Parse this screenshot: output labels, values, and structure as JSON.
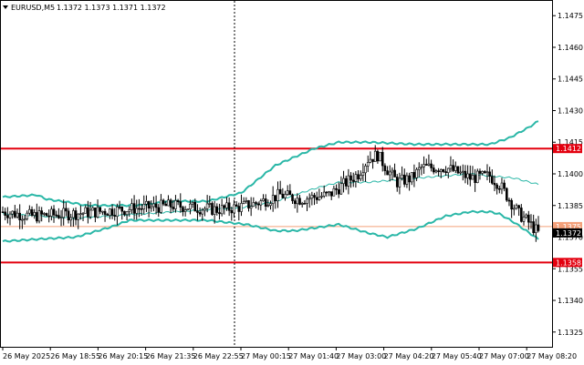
{
  "window": {
    "symbol_timeframe": "EURUSD,M5",
    "ohlc": "1.1372 1.1373 1.1371 1.1372",
    "dropdown_icon": "triangle-down-icon"
  },
  "chart_data": {
    "type": "candlestick",
    "title": "EURUSD,M5",
    "ylim": [
      1.1318,
      1.1482
    ],
    "y_ticks": [
      "1.1475",
      "1.1460",
      "1.1445",
      "1.1430",
      "1.1415",
      "1.1400",
      "1.1385",
      "1.1370",
      "1.1355",
      "1.1340",
      "1.1325"
    ],
    "x_ticks": [
      "26 May 2025",
      "26 May 18:55",
      "26 May 20:15",
      "26 May 21:35",
      "26 May 22:55",
      "27 May 00:15",
      "27 May 01:40",
      "27 May 03:00",
      "27 May 04:20",
      "27 May 05:40",
      "27 May 07:00",
      "27 May 08:20"
    ],
    "horizontal_levels": [
      {
        "value": 1.1412,
        "label": "1.1412",
        "color": "#e3000f"
      },
      {
        "value": 1.1358,
        "label": "1.1358",
        "color": "#e3000f"
      },
      {
        "value": 1.1375,
        "label": "1.1375",
        "color": "#f4a07a"
      }
    ],
    "current_price": {
      "value": 1.1372,
      "label": "1.1372",
      "color": "#000000"
    },
    "vertical_marker_time": "26 May 22:55",
    "bollinger": {
      "color": "#2ab7a7",
      "upper_anchors": [
        [
          0,
          1.1389
        ],
        [
          14,
          1.139
        ],
        [
          18,
          1.1388
        ],
        [
          30,
          1.1386
        ],
        [
          34,
          1.1385
        ],
        [
          55,
          1.1385
        ],
        [
          70,
          1.1387
        ],
        [
          84,
          1.1387
        ],
        [
          98,
          1.1391
        ],
        [
          112,
          1.1404
        ],
        [
          128,
          1.1412
        ],
        [
          138,
          1.1415
        ],
        [
          150,
          1.1415
        ],
        [
          170,
          1.1414
        ],
        [
          192,
          1.1414
        ],
        [
          200,
          1.1414
        ],
        [
          208,
          1.1417
        ],
        [
          216,
          1.1422
        ],
        [
          220,
          1.1425
        ]
      ],
      "middle_anchors": [
        [
          0,
          1.1381
        ],
        [
          30,
          1.1379
        ],
        [
          70,
          1.1382
        ],
        [
          98,
          1.1384
        ],
        [
          112,
          1.1387
        ],
        [
          128,
          1.1393
        ],
        [
          138,
          1.1396
        ],
        [
          150,
          1.1396
        ],
        [
          170,
          1.1398
        ],
        [
          192,
          1.14
        ],
        [
          200,
          1.1399
        ],
        [
          210,
          1.1398
        ],
        [
          220,
          1.1395
        ]
      ],
      "lower_anchors": [
        [
          0,
          1.1368
        ],
        [
          14,
          1.1369
        ],
        [
          30,
          1.137
        ],
        [
          45,
          1.1375
        ],
        [
          52,
          1.1378
        ],
        [
          70,
          1.1378
        ],
        [
          84,
          1.1378
        ],
        [
          100,
          1.1376
        ],
        [
          112,
          1.1373
        ],
        [
          120,
          1.1373
        ],
        [
          138,
          1.1376
        ],
        [
          150,
          1.1372
        ],
        [
          158,
          1.137
        ],
        [
          170,
          1.1374
        ],
        [
          182,
          1.138
        ],
        [
          192,
          1.1382
        ],
        [
          200,
          1.1382
        ],
        [
          204,
          1.1381
        ],
        [
          210,
          1.1377
        ],
        [
          215,
          1.1373
        ],
        [
          220,
          1.1369
        ]
      ]
    },
    "price_anchors": [
      [
        0,
        1.1382
      ],
      [
        12,
        1.138
      ],
      [
        28,
        1.1381
      ],
      [
        48,
        1.1383
      ],
      [
        70,
        1.1385
      ],
      [
        88,
        1.1383
      ],
      [
        96,
        1.1384
      ],
      [
        104,
        1.1386
      ],
      [
        114,
        1.139
      ],
      [
        122,
        1.1388
      ],
      [
        134,
        1.139
      ],
      [
        140,
        1.1395
      ],
      [
        146,
        1.14
      ],
      [
        150,
        1.1407
      ],
      [
        154,
        1.1409
      ],
      [
        158,
        1.1402
      ],
      [
        162,
        1.1396
      ],
      [
        168,
        1.1398
      ],
      [
        172,
        1.1403
      ],
      [
        182,
        1.1403
      ],
      [
        192,
        1.1398
      ],
      [
        200,
        1.1399
      ],
      [
        204,
        1.1395
      ],
      [
        208,
        1.1388
      ],
      [
        212,
        1.1381
      ],
      [
        216,
        1.1377
      ],
      [
        220,
        1.1372
      ]
    ],
    "candle_count": 221
  }
}
